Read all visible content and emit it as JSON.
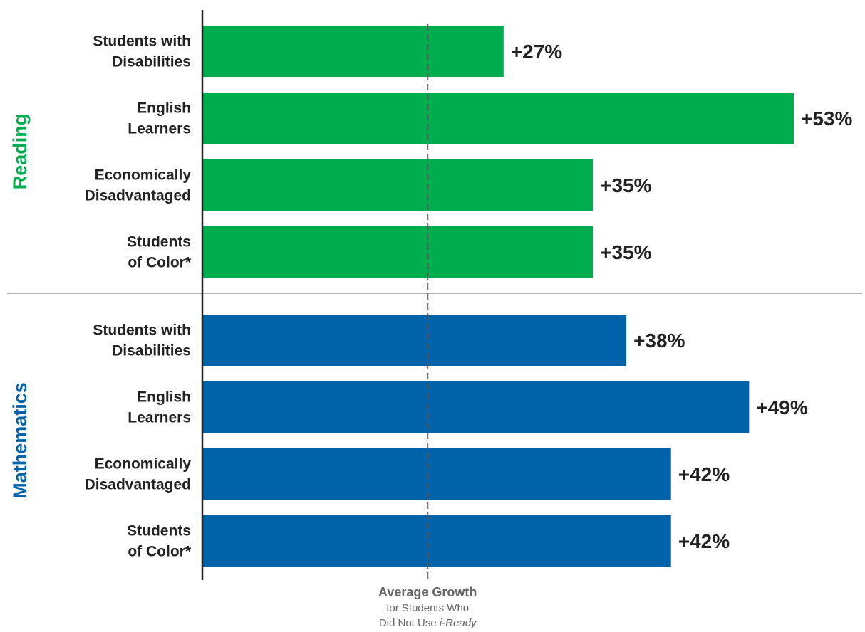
{
  "chart_data": {
    "type": "bar",
    "orientation": "horizontal",
    "xlim": [
      0,
      55
    ],
    "groups": [
      {
        "name": "Reading",
        "color": "#00ad4e",
        "bars": [
          {
            "category_lines": [
              "Students with",
              "Disabilities"
            ],
            "value": 27,
            "label": "+27%"
          },
          {
            "category_lines": [
              "English",
              "Learners"
            ],
            "value": 53,
            "label": "+53%"
          },
          {
            "category_lines": [
              "Economically",
              "Disadvantaged"
            ],
            "value": 35,
            "label": "+35%"
          },
          {
            "category_lines": [
              "Students",
              "of Color*"
            ],
            "value": 35,
            "label": "+35%"
          }
        ]
      },
      {
        "name": "Mathematics",
        "color": "#0063aa",
        "bars": [
          {
            "category_lines": [
              "Students with",
              "Disabilities"
            ],
            "value": 38,
            "label": "+38%"
          },
          {
            "category_lines": [
              "English",
              "Learners"
            ],
            "value": 49,
            "label": "+49%"
          },
          {
            "category_lines": [
              "Economically",
              "Disadvantaged"
            ],
            "value": 42,
            "label": "+42%"
          },
          {
            "category_lines": [
              "Students",
              "of Color*"
            ],
            "value": 42,
            "label": "+42%"
          }
        ]
      }
    ],
    "reference_line": {
      "value": 20,
      "style": "dashed",
      "color": "#555555",
      "title": "Average Growth",
      "subtitle_line1": "for Students Who",
      "subtitle_line2_prefix": "Did Not Use ",
      "subtitle_line2_emphasis": "i-Ready"
    },
    "divider_color": "#999999",
    "axis_color": "#222222"
  }
}
